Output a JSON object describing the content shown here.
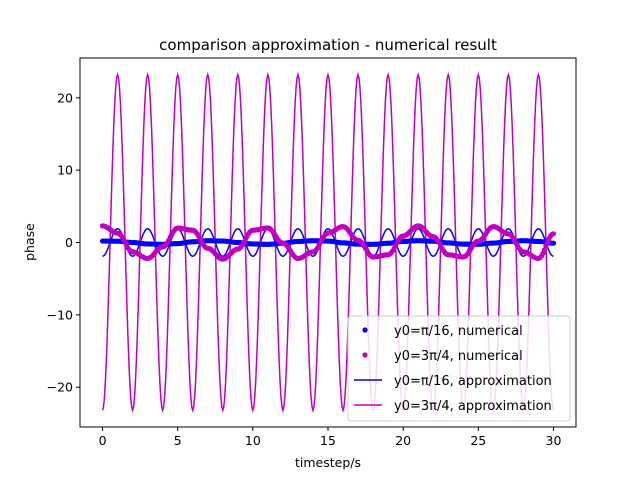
{
  "chart_data": {
    "type": "line",
    "title": "comparison approximation - numerical result",
    "xlabel": "timestep/s",
    "ylabel": "phase",
    "xlim": [
      -1.5,
      31.5
    ],
    "ylim": [
      -25.5,
      25.5
    ],
    "xticks": [
      0,
      5,
      10,
      15,
      20,
      25,
      30
    ],
    "yticks": [
      -20,
      -10,
      0,
      10,
      20
    ],
    "xtick_labels": [
      "0",
      "5",
      "10",
      "15",
      "20",
      "25",
      "30"
    ],
    "ytick_labels": [
      "−20",
      "−10",
      "0",
      "10",
      "20"
    ],
    "grid": false,
    "legend_position": "lower-right",
    "series": [
      {
        "name": "y0=π/16, numerical",
        "style": "dots",
        "color": "#0000ff",
        "x": [
          0,
          1,
          2,
          3,
          4,
          5,
          6,
          7,
          8,
          9,
          10,
          11,
          12,
          13,
          14,
          15,
          16,
          17,
          18,
          19,
          20,
          21,
          22,
          23,
          24,
          25,
          26,
          27,
          28,
          29,
          30
        ],
        "y": [
          0.2,
          0.18,
          0.0,
          -0.2,
          -0.25,
          -0.15,
          0.1,
          0.25,
          0.2,
          0.0,
          -0.2,
          -0.25,
          -0.1,
          0.15,
          0.25,
          0.2,
          -0.05,
          -0.22,
          -0.25,
          -0.1,
          0.15,
          0.25,
          0.18,
          -0.05,
          -0.22,
          -0.24,
          -0.08,
          0.15,
          0.25,
          0.15,
          -0.1
        ]
      },
      {
        "name": "y0=3π/4, numerical",
        "style": "dots",
        "color": "#bf00bf",
        "x": [
          0,
          1,
          2,
          3,
          4,
          5,
          6,
          7,
          8,
          9,
          10,
          11,
          12,
          13,
          14,
          15,
          16,
          17,
          18,
          19,
          20,
          21,
          22,
          23,
          24,
          25,
          26,
          27,
          28,
          29,
          30
        ],
        "y": [
          2.3,
          1.3,
          -1.3,
          -2.2,
          -0.6,
          2.0,
          1.7,
          -0.8,
          -2.3,
          -0.9,
          1.7,
          2.0,
          -0.1,
          -2.2,
          -1.3,
          1.3,
          2.2,
          0.3,
          -2.0,
          -1.7,
          0.9,
          2.3,
          0.8,
          -1.7,
          -2.0,
          0.2,
          2.2,
          1.2,
          -1.3,
          -2.2,
          1.2
        ]
      },
      {
        "name": "y0=π/16, approximation",
        "style": "line",
        "color": "#0000ff",
        "x": [
          0,
          0.5,
          1.0,
          1.5,
          2.0,
          2.5,
          3.0,
          3.5,
          4.0,
          4.5,
          5.0,
          5.5,
          6.0,
          6.5,
          7.0,
          7.5,
          8.0,
          8.5,
          9.0,
          9.5,
          10.0,
          10.5,
          11.0,
          11.5,
          12.0,
          12.5,
          13.0,
          13.5,
          14.0,
          14.5,
          15.0,
          15.5,
          16.0,
          16.5,
          17.0,
          17.5,
          18.0,
          18.5,
          19.0,
          19.5,
          20.0,
          20.5,
          21.0,
          21.5,
          22.0,
          22.5,
          23.0,
          23.5,
          24.0,
          24.5,
          25.0,
          25.5,
          26.0,
          26.5,
          27.0,
          27.5,
          28.0,
          28.5,
          29.0,
          29.5,
          30.0
        ],
        "y": [
          -1.9,
          0.0,
          1.9,
          0.0,
          -1.9,
          0.0,
          1.9,
          0.0,
          -1.9,
          0.0,
          1.9,
          0.0,
          -1.9,
          0.0,
          1.9,
          0.0,
          -1.9,
          0.0,
          1.9,
          0.0,
          -1.9,
          0.0,
          1.9,
          0.0,
          -1.9,
          0.0,
          1.9,
          0.0,
          -1.9,
          0.0,
          1.9,
          0.0,
          -1.9,
          0.0,
          1.9,
          0.0,
          -1.9,
          0.0,
          1.9,
          0.0,
          -1.9,
          0.0,
          1.9,
          0.0,
          -1.9,
          0.0,
          1.9,
          0.0,
          -1.9,
          0.0,
          1.9,
          0.0,
          -1.9,
          0.0,
          1.9,
          0.0,
          -1.9,
          0.0,
          1.9,
          0.0,
          -1.9
        ]
      },
      {
        "name": "y0=3π/4, approximation",
        "style": "line",
        "color": "#bf00bf",
        "x": [
          0,
          0.5,
          1.0,
          1.5,
          2.0,
          2.5,
          3.0,
          3.5,
          4.0,
          4.5,
          5.0,
          5.5,
          6.0,
          6.5,
          7.0,
          7.5,
          8.0,
          8.5,
          9.0,
          9.5,
          10.0,
          10.5,
          11.0,
          11.5,
          12.0,
          12.5,
          13.0,
          13.5,
          14.0,
          14.5,
          15.0,
          15.5,
          16.0,
          16.5,
          17.0,
          17.5,
          18.0,
          18.5,
          19.0,
          19.5,
          20.0,
          20.5,
          21.0,
          21.5,
          22.0,
          22.5,
          23.0,
          23.5,
          24.0,
          24.5,
          25.0,
          25.5,
          26.0,
          26.5,
          27.0,
          27.5,
          28.0,
          28.5,
          29.0,
          29.5,
          30.0
        ],
        "y": [
          -23.2,
          0.0,
          23.2,
          0.0,
          -23.2,
          0.0,
          23.2,
          0.0,
          -23.2,
          0.0,
          23.2,
          0.0,
          -23.2,
          0.0,
          23.2,
          0.0,
          -23.2,
          0.0,
          23.2,
          0.0,
          -23.2,
          0.0,
          23.2,
          0.0,
          -23.2,
          0.0,
          23.2,
          0.0,
          -23.2,
          0.0,
          23.2,
          0.0,
          -23.2,
          0.0,
          23.2,
          0.0,
          -23.2,
          0.0,
          23.2,
          0.0,
          -23.2,
          0.0,
          23.2,
          0.0,
          -23.2,
          0.0,
          23.2,
          0.0,
          -23.2,
          0.0,
          23.2,
          0.0,
          -23.2,
          0.0,
          23.2,
          0.0,
          -23.2,
          0.0,
          23.2,
          0.0,
          -23.2
        ]
      }
    ]
  }
}
